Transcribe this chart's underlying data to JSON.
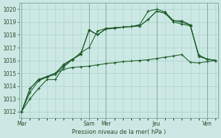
{
  "xlabel": "Pression niveau de la mer( hPa )",
  "ylim": [
    1011.5,
    1020.5
  ],
  "yticks": [
    1012,
    1013,
    1014,
    1015,
    1016,
    1017,
    1018,
    1019,
    1020
  ],
  "bg_color": "#cce8e4",
  "grid_color": "#a8cfc8",
  "line_color": "#1a5c28",
  "day_labels": [
    "Mar",
    "Sam",
    "Mer",
    "Jeu",
    "Ven"
  ],
  "day_positions": [
    0,
    8,
    10,
    16,
    22
  ],
  "xlim": [
    -0.3,
    23.3
  ],
  "series1": [
    1012.0,
    1013.8,
    1014.5,
    1014.7,
    1015.0,
    1015.7,
    1016.1,
    1016.45,
    1018.4,
    1018.0,
    1018.5,
    1018.55,
    1018.6,
    1018.65,
    1018.8,
    1019.85,
    1020.0,
    1019.8,
    1019.1,
    1019.1,
    1018.78,
    1016.3,
    1016.1,
    1016.0
  ],
  "series2": [
    1012.0,
    1013.5,
    1014.4,
    1014.7,
    1014.9,
    1015.6,
    1016.05,
    1016.5,
    1018.35,
    1018.0,
    1018.45,
    1018.5,
    1018.6,
    1018.65,
    1018.7,
    1019.2,
    1019.85,
    1019.7,
    1019.0,
    1018.85,
    1018.7,
    1016.4,
    1016.1,
    1016.0
  ],
  "series3": [
    1012.0,
    1013.8,
    1014.5,
    1014.75,
    1015.0,
    1015.3,
    1015.45,
    1015.5,
    1015.55,
    1015.65,
    1015.75,
    1015.82,
    1015.9,
    1015.95,
    1016.0,
    1016.05,
    1016.15,
    1016.25,
    1016.35,
    1016.45,
    1015.85,
    1015.8,
    1015.9,
    1016.0
  ],
  "series4": [
    1012.0,
    1013.0,
    1013.8,
    1014.5,
    1014.5,
    1015.5,
    1016.05,
    1016.6,
    1017.0,
    1018.3,
    1018.5,
    1018.55,
    1018.6,
    1018.65,
    1018.7,
    1019.2,
    1019.85,
    1019.7,
    1019.1,
    1019.0,
    1018.75,
    1016.4,
    1016.1,
    1016.0
  ]
}
